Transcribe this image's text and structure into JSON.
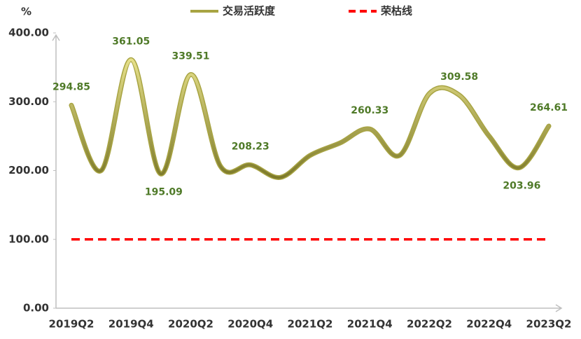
{
  "chart_data": {
    "type": "line",
    "y_label": "%",
    "categories": [
      "2019Q2",
      null,
      "2019Q4",
      null,
      "2020Q2",
      null,
      "2020Q4",
      null,
      "2021Q2",
      null,
      "2021Q4",
      null,
      "2022Q2",
      null,
      "2022Q4",
      null,
      "2023Q2"
    ],
    "series": [
      {
        "name": "交易活跃度",
        "color": "#a8a443",
        "smooth": true,
        "values": [
          294.85,
          200,
          361.05,
          195.09,
          339.51,
          206,
          208.23,
          190,
          222,
          240,
          260.33,
          222,
          312,
          309.58,
          250,
          203.96,
          264.61
        ],
        "value_labels": [
          "294.85",
          null,
          "361.05",
          "195.09",
          "339.51",
          null,
          "208.23",
          null,
          null,
          null,
          "260.33",
          null,
          null,
          "309.58",
          null,
          "203.96",
          "264.61"
        ]
      },
      {
        "name": "荣枯线",
        "color": "#ff0000",
        "dashed": true,
        "values": [
          100,
          100,
          100,
          100,
          100,
          100,
          100,
          100,
          100,
          100,
          100,
          100,
          100,
          100,
          100,
          100,
          100
        ]
      }
    ],
    "ylim": [
      0,
      400
    ],
    "yticks": [
      {
        "value": 0,
        "label": "0.00"
      },
      {
        "value": 100,
        "label": "100.00"
      },
      {
        "value": 200,
        "label": "200.00"
      },
      {
        "value": 300,
        "label": "300.00"
      },
      {
        "value": 400,
        "label": "400.00"
      }
    ]
  }
}
